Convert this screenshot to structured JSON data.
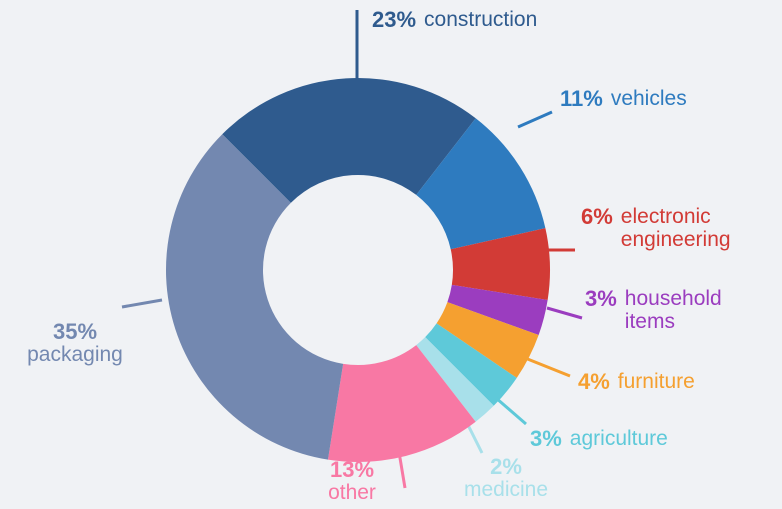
{
  "chart_data": {
    "type": "pie",
    "categories": [
      "construction",
      "vehicles",
      "electronic engineering",
      "household items",
      "furniture",
      "agriculture",
      "medicine",
      "other",
      "packaging"
    ],
    "values": [
      23,
      11,
      6,
      3,
      4,
      3,
      2,
      13,
      35
    ],
    "value_labels": [
      "23%",
      "11%",
      "6%",
      "3%",
      "4%",
      "3%",
      "2%",
      "13%",
      "35%"
    ],
    "colors": [
      "#2f5b8e",
      "#2e7bbf",
      "#d23b36",
      "#9b3dbf",
      "#f5a030",
      "#5ec9d9",
      "#a8e0ea",
      "#f878a4",
      "#7388b0"
    ]
  }
}
